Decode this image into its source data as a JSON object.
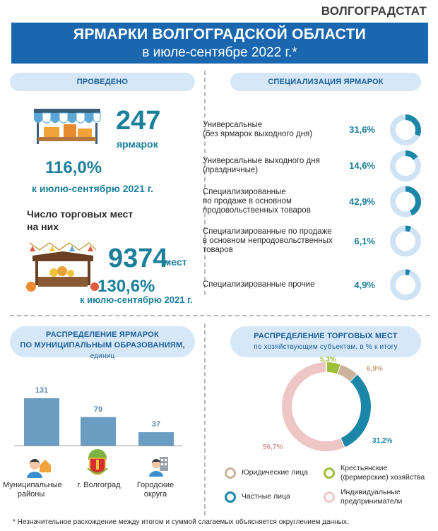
{
  "brand": "ВОЛГОГРАДСТАТ",
  "banner": {
    "title": "ЯРМАРКИ ВОЛГОГРАДСКОЙ ОБЛАСТИ",
    "subtitle": "в июле-сентябре 2022 г.*"
  },
  "held": {
    "header": "ПРОВЕДЕНО",
    "fairs_count": "247",
    "fairs_word": "ярмарок",
    "fairs_pct": "116,0%",
    "fairs_pct_note": "к июлю-сентябрю 2021 г.",
    "places_title_1": "Число торговых мест",
    "places_title_2": "на них",
    "places_count": "9374",
    "places_word": "мест",
    "places_pct": "130,6%",
    "places_pct_note": "к июлю-сентябрю 2021 г."
  },
  "specialization": {
    "header": "СПЕЦИАЛИЗАЦИЯ ЯРМАРОК",
    "items": [
      {
        "name": "Универсальные\n(без ярмарок выходного дня)",
        "value_label": "31,6%",
        "value": 31.6
      },
      {
        "name": "Универсальные выходного дня\n(праздничные)",
        "value_label": "14,6%",
        "value": 14.6
      },
      {
        "name": "Специализированные\nпо продаже в основном\nпродовольственных товаров",
        "value_label": "42,9%",
        "value": 42.9
      },
      {
        "name": "Специализированные по продаже\nв основном непродовольственных\nтоваров",
        "value_label": "6,1%",
        "value": 6.1
      },
      {
        "name": "Специализированные прочие",
        "value_label": "4,9%",
        "value": 4.9
      }
    ]
  },
  "distribution_fairs": {
    "header_1": "РАСПРЕДЕЛЕНИЕ ЯРМАРОК",
    "header_2": "ПО МУНИЦИПАЛЬНЫМ ОБРАЗОВАНИЯМ,",
    "header_3": "единиц"
  },
  "distribution_places": {
    "header_1": "РАСПРЕДЕЛЕНИЕ ТОРГОВЫХ МЕСТ",
    "header_2": "по хозяйствующим субъектам, в % к итогу"
  },
  "chart_data": [
    {
      "type": "bar",
      "categories": [
        "Муниципальные\nрайоны",
        "г. Волгоград",
        "Городские\nокруга"
      ],
      "values": [
        131,
        79,
        37
      ],
      "value_labels": [
        "131",
        "79",
        "37"
      ],
      "ylim": [
        0,
        131
      ]
    },
    {
      "type": "pie",
      "labels": [
        "Крестьянские (фермерские) хозяйства",
        "Юридические лица",
        "Частные лица",
        "Индивидуальные предприниматели"
      ],
      "values": [
        5.3,
        6.9,
        31.2,
        56.7
      ],
      "value_labels": [
        "5,3%",
        "6,9%",
        "31,2%",
        "56,7%"
      ],
      "colors": [
        "#9dbf3a",
        "#c9b49a",
        "#1b86a8",
        "#efc6c6"
      ]
    }
  ],
  "legend": [
    {
      "name": "Юридические лица",
      "color": "#c9b49a"
    },
    {
      "name": "Крестьянские\n(фермерские) хозяйства",
      "color": "#9dbf3a"
    },
    {
      "name": "Частные лица",
      "color": "#1b86a8"
    },
    {
      "name": "Индивидуальные\nпредприниматели",
      "color": "#efc6c6"
    }
  ],
  "footnote": "* Незначительное расхождение между итогом и суммой слагаемых объясняется округлением данных."
}
